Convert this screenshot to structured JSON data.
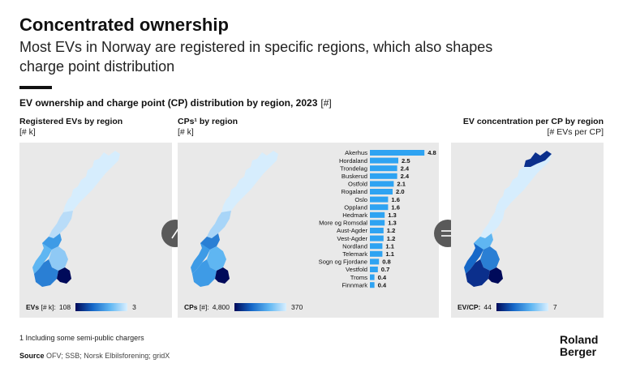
{
  "header": {
    "title": "Concentrated ownership",
    "subtitle": "Most EVs in Norway are registered in specific regions, which also shapes charge point distribution"
  },
  "chart_title": {
    "text": "EV ownership and charge point (CP) distribution by region, 2023",
    "unit": "[#]"
  },
  "panels": {
    "evs": {
      "title": "Registered EVs by region",
      "unit": "[# k]",
      "legend_label": "EVs",
      "legend_unit": "[# k]:",
      "legend_min": "108",
      "legend_max": "3"
    },
    "cps": {
      "title": "CPs¹ by region",
      "unit": "[# k]",
      "legend_label": "CPs",
      "legend_unit": "[#]:",
      "legend_min": "4,800",
      "legend_max": "370"
    },
    "concentration": {
      "title": "EV concentration per CP by region",
      "unit": "[# EVs per CP]",
      "legend_label": "EV/CP:",
      "legend_unit": "",
      "legend_min": "44",
      "legend_max": "7"
    }
  },
  "operators": {
    "divide": "⁄",
    "equals": "="
  },
  "chart_data": {
    "type": "bar",
    "orientation": "horizontal",
    "title": "CPs¹ by region",
    "ylabel": "[# k]",
    "categories": [
      "Akerhus",
      "Hordaland",
      "Trondelag",
      "Buskerud",
      "Ostfold",
      "Rogaland",
      "Oslo",
      "Oppland",
      "Hedmark",
      "More og Romsdal",
      "Aust-Agder",
      "Vest-Agder",
      "Nordland",
      "Telemark",
      "Sogn og Fjordane",
      "Vestfold",
      "Troms",
      "Finnmark"
    ],
    "values": [
      4.8,
      2.5,
      2.4,
      2.4,
      2.1,
      2.0,
      1.6,
      1.6,
      1.3,
      1.3,
      1.2,
      1.2,
      1.1,
      1.1,
      0.8,
      0.7,
      0.4,
      0.4
    ],
    "value_labels": [
      "4.8",
      "2.5",
      "2.4",
      "2.4",
      "2.1",
      "2.0",
      "1.6",
      "1.6",
      "1.3",
      "1.3",
      "1.2",
      "1.2",
      "1.1",
      "1.1",
      "0.8",
      "0.7",
      "0.4",
      "0.4"
    ],
    "xlim": [
      0,
      5
    ],
    "bar_color": "#2ea3f2"
  },
  "colors": {
    "scale_dark": "#000a5a",
    "scale_mid": "#1668c8",
    "scale_light": "#d9efff",
    "panel_bg": "#e9e9e9",
    "operator_bg": "#5a5a5a"
  },
  "footer": {
    "footnote": "1 Including some semi-public chargers",
    "source_label": "Source",
    "source_text": "OFV; SSB; Norsk Elbilsforening; gridX",
    "logo_line1": "Roland",
    "logo_line2": "Berger"
  }
}
